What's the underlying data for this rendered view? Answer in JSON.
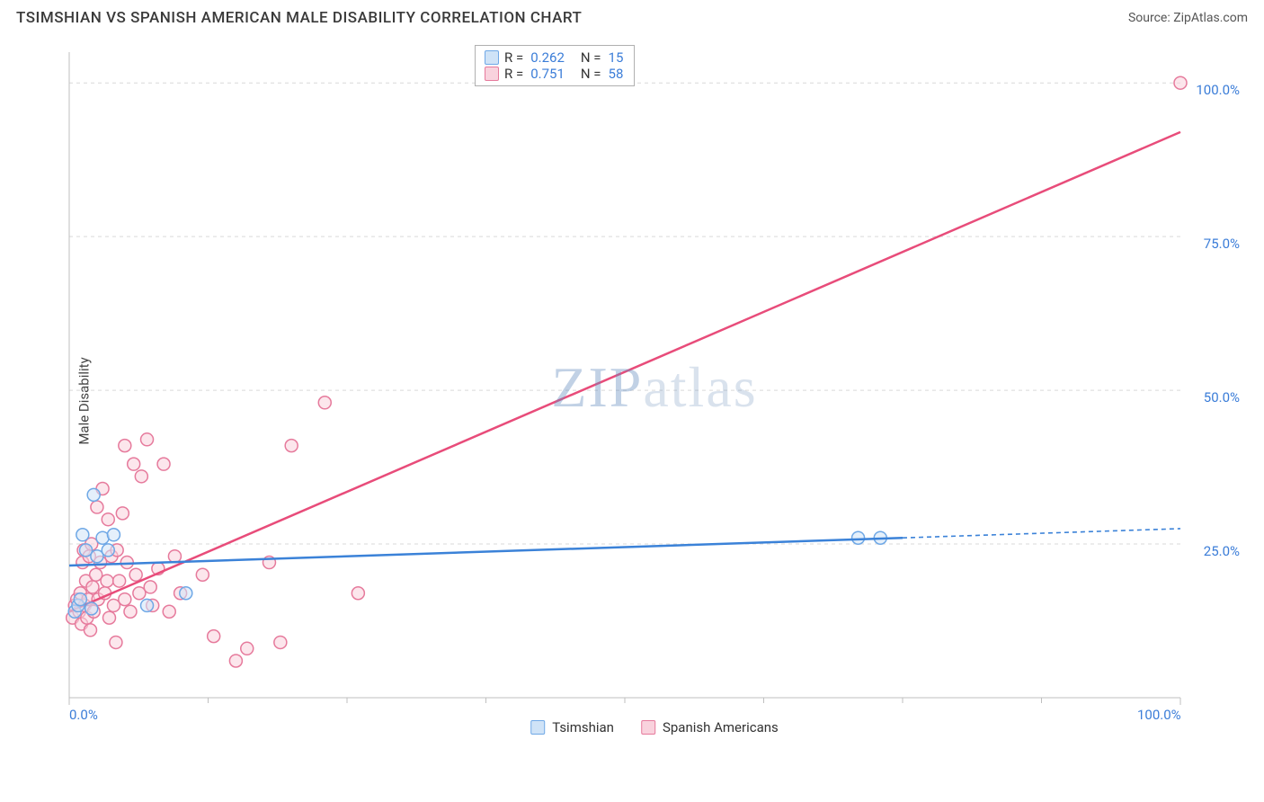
{
  "header": {
    "title": "TSIMSHIAN VS SPANISH AMERICAN MALE DISABILITY CORRELATION CHART",
    "source_prefix": "Source: ",
    "source_name": "ZipAtlas.com"
  },
  "y_axis_label": "Male Disability",
  "watermark": {
    "zip": "ZIP",
    "atlas": "atlas"
  },
  "chart": {
    "type": "scatter-with-regression",
    "bg": "#ffffff",
    "xlim": [
      0,
      100
    ],
    "ylim": [
      0,
      105
    ],
    "x_ticks": [
      0.0,
      100.0
    ],
    "x_tick_labels": [
      "0.0%",
      "100.0%"
    ],
    "x_minor_ticks": [
      12.5,
      25,
      37.5,
      50,
      62.5,
      75,
      87.5
    ],
    "y_ticks": [
      25.0,
      50.0,
      75.0,
      100.0
    ],
    "y_tick_labels": [
      "25.0%",
      "50.0%",
      "75.0%",
      "100.0%"
    ],
    "grid_color": "#d9d9d9",
    "grid_dash": "4,4",
    "axis_color": "#bfbfbf",
    "tick_label_color": "#3b7dd8",
    "tick_fontsize": 15
  },
  "series": {
    "tsimshian": {
      "label": "Tsimshian",
      "fill": "#cfe3f7",
      "stroke": "#6fa8e6",
      "line_color": "#3b82d8",
      "line_dash_ext": "5,4",
      "R": "0.262",
      "N": "15",
      "reg_line": {
        "x1": 0,
        "y1": 21.5,
        "x2": 75,
        "y2": 26.0,
        "x2_ext": 100,
        "y2_ext": 27.5
      },
      "points": [
        [
          0.5,
          14
        ],
        [
          0.8,
          15
        ],
        [
          1.0,
          16
        ],
        [
          1.2,
          26.5
        ],
        [
          1.5,
          24
        ],
        [
          2.0,
          14.5
        ],
        [
          2.2,
          33
        ],
        [
          2.5,
          23
        ],
        [
          3.0,
          26
        ],
        [
          10.5,
          17
        ],
        [
          3.5,
          24
        ],
        [
          4.0,
          26.5
        ],
        [
          7.0,
          15
        ],
        [
          71.0,
          26
        ],
        [
          73.0,
          26
        ]
      ]
    },
    "spanish": {
      "label": "Spanish Americans",
      "fill": "#f9d2dd",
      "stroke": "#e67a9c",
      "line_color": "#e84c7a",
      "R": "0.751",
      "N": "58",
      "reg_line": {
        "x1": 0,
        "y1": 14,
        "x2": 100,
        "y2": 92
      },
      "points": [
        [
          0.3,
          13
        ],
        [
          0.5,
          15
        ],
        [
          0.7,
          16
        ],
        [
          0.9,
          14
        ],
        [
          1.0,
          17
        ],
        [
          1.1,
          12
        ],
        [
          1.2,
          22
        ],
        [
          1.3,
          24
        ],
        [
          1.4,
          15
        ],
        [
          1.5,
          19
        ],
        [
          1.6,
          13
        ],
        [
          1.7,
          16
        ],
        [
          1.8,
          23
        ],
        [
          1.9,
          11
        ],
        [
          2.0,
          25
        ],
        [
          2.1,
          18
        ],
        [
          2.2,
          14
        ],
        [
          2.4,
          20
        ],
        [
          2.5,
          31
        ],
        [
          2.6,
          16
        ],
        [
          2.8,
          22
        ],
        [
          3.0,
          34
        ],
        [
          3.2,
          17
        ],
        [
          3.4,
          19
        ],
        [
          3.5,
          29
        ],
        [
          3.6,
          13
        ],
        [
          3.8,
          23
        ],
        [
          4.0,
          15
        ],
        [
          4.2,
          9
        ],
        [
          4.3,
          24
        ],
        [
          4.5,
          19
        ],
        [
          4.8,
          30
        ],
        [
          5.0,
          16
        ],
        [
          5.0,
          41
        ],
        [
          5.2,
          22
        ],
        [
          5.5,
          14
        ],
        [
          5.8,
          38
        ],
        [
          6.0,
          20
        ],
        [
          6.3,
          17
        ],
        [
          6.5,
          36
        ],
        [
          7.0,
          42
        ],
        [
          7.3,
          18
        ],
        [
          7.5,
          15
        ],
        [
          8.0,
          21
        ],
        [
          8.5,
          38
        ],
        [
          9.0,
          14
        ],
        [
          9.5,
          23
        ],
        [
          10.0,
          17
        ],
        [
          12.0,
          20
        ],
        [
          13.0,
          10
        ],
        [
          15.0,
          6
        ],
        [
          16.0,
          8
        ],
        [
          18.0,
          22
        ],
        [
          19.0,
          9
        ],
        [
          20.0,
          41
        ],
        [
          23.0,
          48
        ],
        [
          26.0,
          17
        ],
        [
          100.0,
          100
        ]
      ]
    }
  },
  "stats_legend": {
    "rows": [
      {
        "swatch_series": "tsimshian",
        "R": "0.262",
        "N": "15"
      },
      {
        "swatch_series": "spanish",
        "R": "0.751",
        "N": "58"
      }
    ],
    "labels": {
      "R": "R =",
      "N": "N ="
    }
  },
  "bottom_legend": {
    "items": [
      {
        "series": "tsimshian",
        "label": "Tsimshian"
      },
      {
        "series": "spanish",
        "label": "Spanish Americans"
      }
    ]
  }
}
